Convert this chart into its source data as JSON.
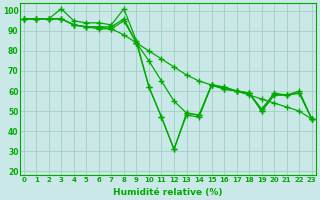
{
  "xlabel": "Humidité relative (%)",
  "background_color": "#cbe8e8",
  "grid_color": "#99ccbb",
  "line_color": "#00aa00",
  "ylim": [
    18,
    104
  ],
  "xlim": [
    -0.3,
    23.3
  ],
  "series": [
    [
      96,
      96,
      96,
      101,
      95,
      94,
      94,
      93,
      101,
      85,
      62,
      47,
      31,
      49,
      48,
      63,
      61,
      60,
      59,
      51,
      59,
      58,
      60,
      46
    ],
    [
      96,
      96,
      96,
      96,
      93,
      92,
      91,
      91,
      88,
      84,
      80,
      76,
      72,
      68,
      65,
      63,
      61,
      60,
      58,
      56,
      54,
      52,
      50,
      46
    ],
    [
      96,
      96,
      96,
      96,
      93,
      92,
      92,
      92,
      96,
      84,
      75,
      65,
      55,
      49,
      48,
      63,
      62,
      60,
      59,
      50,
      58,
      58,
      59,
      46
    ],
    [
      96,
      96,
      96,
      96,
      93,
      92,
      92,
      91,
      95,
      84,
      62,
      47,
      31,
      48,
      47,
      63,
      62,
      60,
      59,
      50,
      58,
      58,
      59,
      46
    ]
  ],
  "xtick_labels": [
    "0",
    "1",
    "2",
    "3",
    "4",
    "5",
    "6",
    "7",
    "8",
    "9",
    "10",
    "11",
    "12",
    "13",
    "14",
    "15",
    "16",
    "17",
    "18",
    "19",
    "20",
    "21",
    "22",
    "23"
  ],
  "ytick_values": [
    20,
    30,
    40,
    50,
    60,
    70,
    80,
    90,
    100
  ],
  "marker": "+",
  "markersize": 4,
  "linewidth": 0.9
}
